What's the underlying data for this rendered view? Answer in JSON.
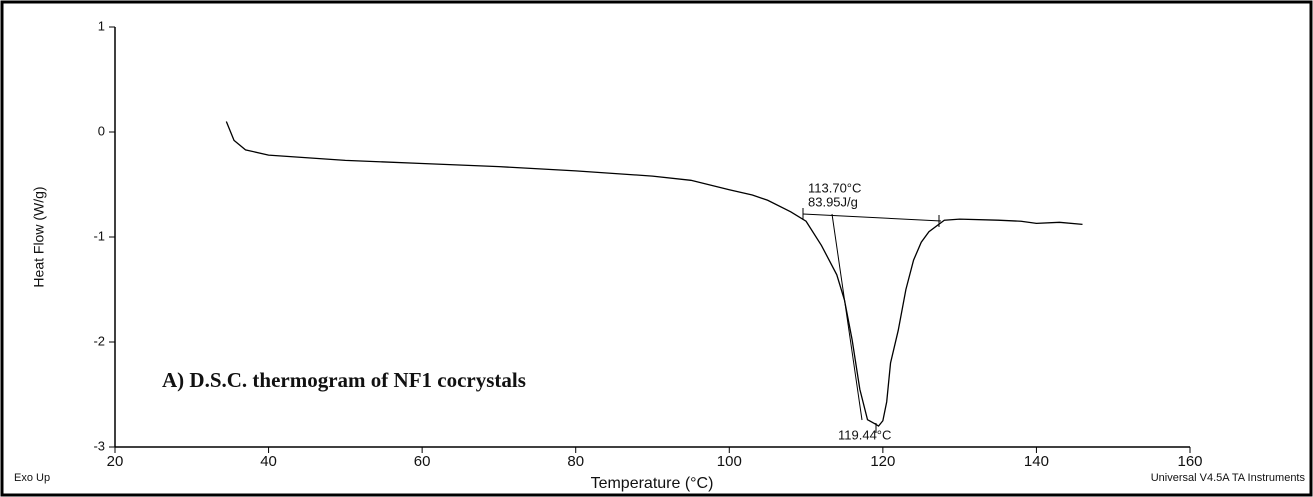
{
  "chart_data": {
    "type": "line",
    "title": "A) D.S.C. thermogram of NF1 cocrystals",
    "x_label": "Temperature (°C)",
    "y_label": "Heat Flow (W/g)",
    "annotations": [
      "113.70°C",
      "83.95J/g",
      "119.44°C",
      "Exo Up",
      "Universal V4.5A TA Instruments"
    ],
    "xlim": [
      20,
      160
    ],
    "xticks": [
      20,
      40,
      60,
      80,
      100,
      120,
      140,
      160
    ],
    "ylim": [
      -3,
      1
    ],
    "yticks": [
      1,
      0,
      -1,
      -2,
      -3
    ],
    "grid": false,
    "series": [
      {
        "name": "NF1 cocrystals",
        "color": "#000000",
        "x": [
          34.5,
          35.5,
          37,
          40,
          50,
          60,
          70,
          80,
          90,
          95,
          100,
          103,
          105,
          108,
          110,
          112,
          114,
          115,
          116,
          117,
          118,
          119,
          119.44,
          120,
          120.5,
          121,
          122,
          123,
          124,
          125,
          126,
          128,
          130,
          135,
          138,
          140,
          143,
          146
        ],
        "values": [
          0.1,
          -0.08,
          -0.17,
          -0.22,
          -0.27,
          -0.3,
          -0.33,
          -0.37,
          -0.42,
          -0.46,
          -0.55,
          -0.6,
          -0.65,
          -0.76,
          -0.85,
          -1.08,
          -1.36,
          -1.6,
          -1.98,
          -2.45,
          -2.74,
          -2.78,
          -2.8,
          -2.75,
          -2.57,
          -2.2,
          -1.89,
          -1.5,
          -1.22,
          -1.05,
          -0.95,
          -0.84,
          -0.83,
          -0.84,
          -0.85,
          -0.87,
          -0.86,
          -0.88
        ]
      }
    ]
  }
}
